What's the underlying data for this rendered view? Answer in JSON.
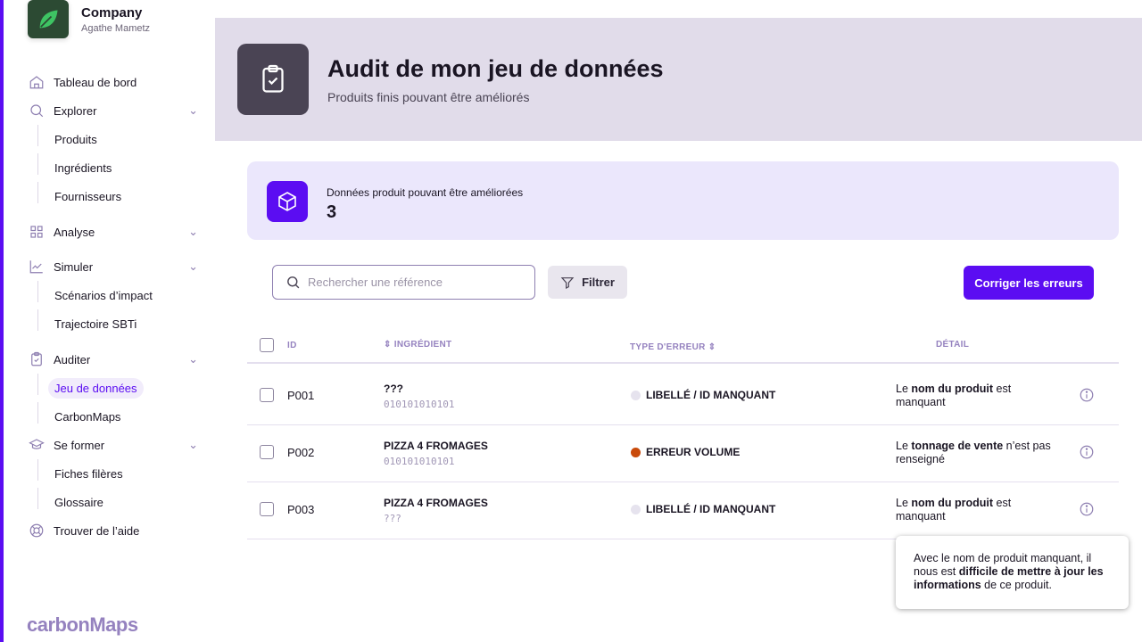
{
  "company": {
    "name": "Company",
    "user": "Agathe Mametz"
  },
  "nav": {
    "dashboard": "Tableau de bord",
    "explorer": "Explorer",
    "explorer_sub": [
      "Produits",
      "Ingrédients",
      "Fournisseurs"
    ],
    "analyse": "Analyse",
    "simuler": "Simuler",
    "simuler_sub": [
      "Scénarios d’impact",
      "Trajectoire SBTi"
    ],
    "auditer": "Auditer",
    "auditer_sub": [
      "Jeu de données",
      "CarbonMaps"
    ],
    "former": "Se former",
    "former_sub": [
      "Fiches filères",
      "Glossaire"
    ],
    "help": "Trouver de l’aide"
  },
  "brand": "carbonMaps",
  "header": {
    "title": "Audit de mon jeu de données",
    "subtitle": "Produits finis pouvant être améliorés"
  },
  "summary": {
    "label": "Données produit pouvant être améliorées",
    "value": "3"
  },
  "toolbar": {
    "search_placeholder": "Rechercher une référence",
    "filter": "Filtrer",
    "fix": "Corriger les erreurs"
  },
  "table": {
    "headers": {
      "id": "ID",
      "ingredient": "⇕ INGRÉDIENT",
      "error": "TYPE D'ERREUR ⇕",
      "detail": "DÉTAIL"
    },
    "rows": [
      {
        "id": "P001",
        "name": "???",
        "code": "010101010101",
        "error": "LIBELLÉ / ID MANQUANT",
        "error_color": "#e6e3ee",
        "detail": {
          "pre": "Le ",
          "bold": "nom du produit",
          "post": " est manquant"
        }
      },
      {
        "id": "P002",
        "name": "PIZZA 4 FROMAGES",
        "code": "010101010101",
        "error": "ERREUR VOLUME",
        "error_color": "#c94a0a",
        "detail": {
          "pre": "Le ",
          "bold": "tonnage de vente",
          "post": " n’est pas renseigné"
        }
      },
      {
        "id": "P003",
        "name": "PIZZA 4 FROMAGES",
        "code": "???",
        "error": "LIBELLÉ / ID MANQUANT",
        "error_color": "#e6e3ee",
        "detail": {
          "pre": "Le ",
          "bold": "nom du produit",
          "post": " est manquant"
        }
      }
    ]
  },
  "tooltip": {
    "pre": "Avec le nom de produit manquant, il nous est ",
    "bold": "difficile de mettre à jour les informations",
    "post": " de ce produit."
  },
  "colors": {
    "accent": "#5b0df2",
    "header_bg": "#e1dcea",
    "card_bg": "#ebe7fc"
  }
}
